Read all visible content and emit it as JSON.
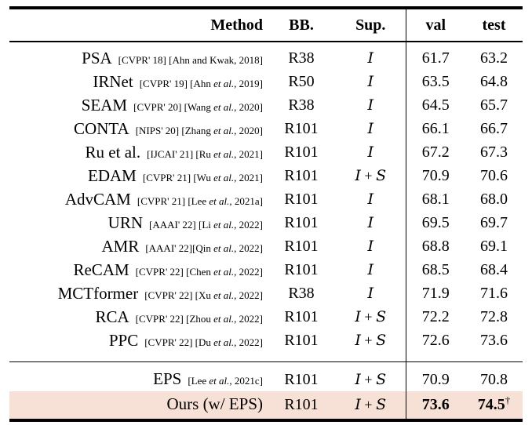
{
  "table": {
    "headers": [
      {
        "key": "method",
        "label": "Method"
      },
      {
        "key": "bb",
        "label": "BB."
      },
      {
        "key": "sup",
        "label": "Sup."
      },
      {
        "key": "val",
        "label": "val"
      },
      {
        "key": "test",
        "label": "test"
      }
    ],
    "highlight_color": "#f7e0d5",
    "sections": [
      {
        "rows": [
          {
            "method": "PSA",
            "cite": "[CVPR' 18] [Ahn and Kwak, 2018]",
            "bb": "R38",
            "sup": "I",
            "val": "61.7",
            "test": "63.2"
          },
          {
            "method": "IRNet",
            "cite": "[CVPR' 19] [Ahn et al., 2019]",
            "bb": "R50",
            "sup": "I",
            "val": "63.5",
            "test": "64.8"
          },
          {
            "method": "SEAM",
            "cite": "[CVPR' 20] [Wang et al., 2020]",
            "bb": "R38",
            "sup": "I",
            "val": "64.5",
            "test": "65.7"
          },
          {
            "method": "CONTA",
            "cite": "[NIPS' 20] [Zhang et al., 2020]",
            "bb": "R101",
            "sup": "I",
            "val": "66.1",
            "test": "66.7"
          },
          {
            "method": "Ru et al.",
            "cite": "[IJCAI' 21] [Ru et al., 2021]",
            "bb": "R101",
            "sup": "I",
            "val": "67.2",
            "test": "67.3"
          },
          {
            "method": "EDAM",
            "cite": "[CVPR' 21] [Wu et al., 2021]",
            "bb": "R101",
            "sup": "I + S",
            "val": "70.9",
            "test": "70.6"
          },
          {
            "method": "AdvCAM",
            "cite": "[CVPR' 21] [Lee et al., 2021a]",
            "bb": "R101",
            "sup": "I",
            "val": "68.1",
            "test": "68.0"
          },
          {
            "method": "URN",
            "cite": "[AAAI' 22] [Li et al., 2022]",
            "bb": "R101",
            "sup": "I",
            "val": "69.5",
            "test": "69.7"
          },
          {
            "method": "AMR",
            "cite": "[AAAI' 22][Qin et al., 2022]",
            "bb": "R101",
            "sup": "I",
            "val": "68.8",
            "test": "69.1"
          },
          {
            "method": "ReCAM",
            "cite": "[CVPR' 22] [Chen et al., 2022]",
            "bb": "R101",
            "sup": "I",
            "val": "68.5",
            "test": "68.4"
          },
          {
            "method": "MCTformer",
            "cite": "[CVPR' 22] [Xu et al., 2022]",
            "bb": "R38",
            "sup": "I",
            "val": "71.9",
            "test": "71.6"
          },
          {
            "method": "RCA",
            "cite": "[CVPR' 22] [Zhou et al., 2022]",
            "bb": "R101",
            "sup": "I + S",
            "val": "72.2",
            "test": "72.8"
          },
          {
            "method": "PPC",
            "cite": "[CVPR' 22] [Du et al., 2022]",
            "bb": "R101",
            "sup": "I + S",
            "val": "72.6",
            "test": "73.6"
          }
        ]
      },
      {
        "rows": [
          {
            "method": "EPS",
            "cite": "[Lee et al., 2021c]",
            "bb": "R101",
            "sup": "I + S",
            "val": "70.9",
            "test": "70.8"
          },
          {
            "method": "Ours (w/ EPS)",
            "cite": "",
            "bb": "R101",
            "sup": "I + S",
            "val": "73.6",
            "test": "74.5",
            "test_mark": "†",
            "bold_values": true,
            "highlight": true
          }
        ]
      }
    ]
  }
}
